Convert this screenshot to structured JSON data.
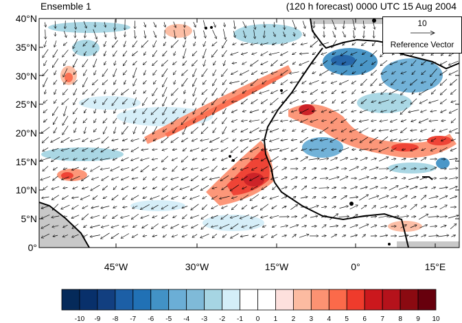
{
  "titles": {
    "left": "Ensemble 1",
    "right": "(120 h forecast) 0000 UTC 15 Aug 2004"
  },
  "axes": {
    "lat_labels": [
      "40°N",
      "35°N",
      "30°N",
      "25°N",
      "20°N",
      "15°N",
      "10°N",
      "5°N",
      "0°"
    ],
    "lon_labels": [
      "45°W",
      "30°W",
      "15°W",
      "0°",
      "15°E"
    ]
  },
  "reference_vector": {
    "value": "10",
    "label": "Reference Vector"
  },
  "colorbar": {
    "labels": [
      "-10",
      "-9",
      "-8",
      "-7",
      "-6",
      "-5",
      "-4",
      "-3",
      "-2",
      "-1",
      "0",
      "1",
      "2",
      "3",
      "4",
      "5",
      "6",
      "7",
      "8",
      "9",
      "10"
    ],
    "colors": [
      "#052a5a",
      "#08306b",
      "#123f80",
      "#1c5fa6",
      "#2171b5",
      "#4292c6",
      "#6baed6",
      "#7fbad8",
      "#a6d5e3",
      "#d4eef8",
      "#ffffff",
      "#ffffff",
      "#fde0dd",
      "#fcbba1",
      "#fc9272",
      "#fb6a4a",
      "#ef3b2c",
      "#cb181d",
      "#b5121b",
      "#8b0a11",
      "#67000d"
    ]
  },
  "map": {
    "lon_range": [
      -62,
      20
    ],
    "lat_range": [
      0,
      40
    ],
    "field": "anomaly shading with wind vectors"
  }
}
